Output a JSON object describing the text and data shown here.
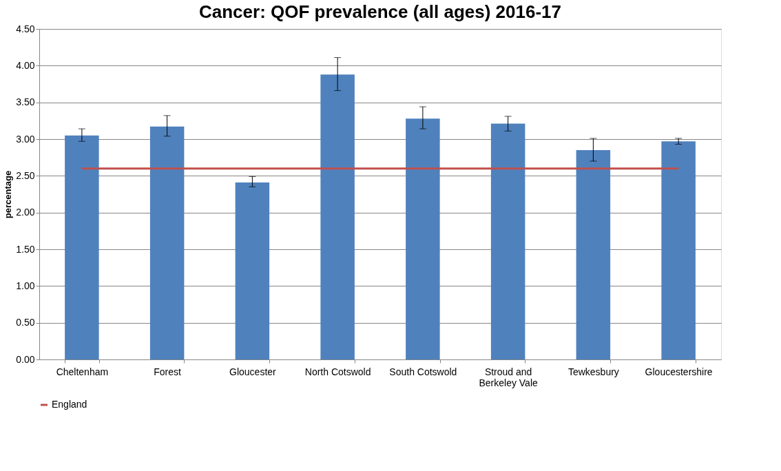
{
  "chart_data": {
    "type": "bar",
    "title": "Cancer: QOF prevalence (all ages) 2016-17",
    "ylabel": "percentage",
    "categories": [
      "Cheltenham",
      "Forest",
      "Gloucester",
      "North Cotswold",
      "South Cotswold",
      "Stroud and Berkeley Vale",
      "Tewkesbury",
      "Gloucestershire"
    ],
    "series": [
      {
        "type": "bar",
        "color": "#4f81bd",
        "values": [
          3.05,
          3.17,
          2.41,
          3.88,
          3.28,
          3.21,
          2.85,
          2.97
        ],
        "errors": [
          [
            2.97,
            3.14
          ],
          [
            3.04,
            3.32
          ],
          [
            2.35,
            2.49
          ],
          [
            3.66,
            4.11
          ],
          [
            3.14,
            3.44
          ],
          [
            3.11,
            3.31
          ],
          [
            2.7,
            3.01
          ],
          [
            2.93,
            3.01
          ]
        ]
      },
      {
        "type": "line",
        "name": "England",
        "color": "#c0504d",
        "values": [
          2.6,
          2.6,
          2.6,
          2.6,
          2.6,
          2.6,
          2.6,
          2.6
        ]
      }
    ],
    "ylim": [
      0,
      4.5
    ],
    "yticks": [
      {
        "value": 0,
        "label": "0.00"
      },
      {
        "value": 0.5,
        "label": "0.50"
      },
      {
        "value": 1,
        "label": "1.00"
      },
      {
        "value": 1.5,
        "label": "1.50"
      },
      {
        "value": 2,
        "label": "2.00"
      },
      {
        "value": 2.5,
        "label": "2.50"
      },
      {
        "value": 3,
        "label": "3.00"
      },
      {
        "value": 3.5,
        "label": "3.50"
      },
      {
        "value": 4,
        "label": "4.00"
      },
      {
        "value": 4.5,
        "label": "4.50"
      }
    ],
    "grid": "y",
    "legend": "bottom"
  }
}
